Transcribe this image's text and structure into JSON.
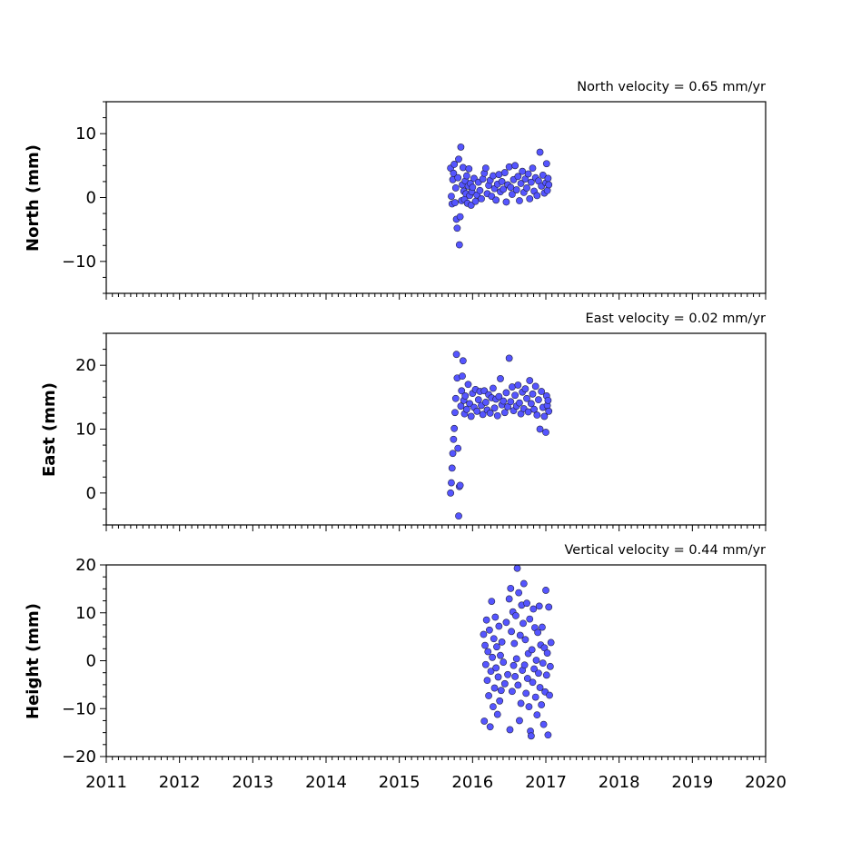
{
  "colors": {
    "marker_fill": "#5555ff",
    "marker_edge": "#222244",
    "axes": "#000000"
  },
  "chart_data": [
    {
      "type": "scatter",
      "title": "North velocity = 0.65 mm/yr",
      "xlabel": "",
      "ylabel": "North (mm)",
      "xlim": [
        2011,
        2020
      ],
      "ylim": [
        -15,
        15
      ],
      "yticks": [
        -10,
        0,
        10
      ],
      "ytick_labels": [
        "−10",
        "0",
        "10"
      ],
      "minor_y_step": 2.5,
      "grid": false,
      "show_xtick_labels": false,
      "series": [
        {
          "points": [
            [
              2015.7,
              4.6
            ],
            [
              2015.71,
              0.2
            ],
            [
              2015.72,
              -1.0
            ],
            [
              2015.73,
              2.8
            ],
            [
              2015.74,
              3.8
            ],
            [
              2015.75,
              5.2
            ],
            [
              2015.76,
              -0.8
            ],
            [
              2015.77,
              1.5
            ],
            [
              2015.78,
              -3.4
            ],
            [
              2015.79,
              -4.8
            ],
            [
              2015.8,
              3.1
            ],
            [
              2015.81,
              6.0
            ],
            [
              2015.82,
              -7.4
            ],
            [
              2015.83,
              -3.0
            ],
            [
              2015.84,
              7.9
            ],
            [
              2015.85,
              -0.5
            ],
            [
              2015.86,
              2.0
            ],
            [
              2015.87,
              4.7
            ],
            [
              2015.88,
              1.0
            ],
            [
              2015.89,
              -0.3
            ],
            [
              2015.9,
              2.6
            ],
            [
              2015.91,
              0.6
            ],
            [
              2015.92,
              3.4
            ],
            [
              2015.93,
              -0.9
            ],
            [
              2015.94,
              1.8
            ],
            [
              2015.95,
              4.5
            ],
            [
              2015.96,
              0.3
            ],
            [
              2015.97,
              2.2
            ],
            [
              2015.98,
              -1.2
            ],
            [
              2015.99,
              0.9
            ],
            [
              2016.0,
              1.6
            ],
            [
              2016.02,
              3.0
            ],
            [
              2016.04,
              -0.6
            ],
            [
              2016.06,
              0.4
            ],
            [
              2016.08,
              2.4
            ],
            [
              2016.1,
              1.1
            ],
            [
              2016.12,
              -0.2
            ],
            [
              2016.14,
              2.9
            ],
            [
              2016.16,
              3.8
            ],
            [
              2016.18,
              4.6
            ],
            [
              2016.2,
              0.6
            ],
            [
              2016.22,
              1.9
            ],
            [
              2016.24,
              2.7
            ],
            [
              2016.26,
              0.2
            ],
            [
              2016.28,
              3.4
            ],
            [
              2016.3,
              1.4
            ],
            [
              2016.32,
              -0.4
            ],
            [
              2016.34,
              2.1
            ],
            [
              2016.36,
              3.6
            ],
            [
              2016.38,
              0.9
            ],
            [
              2016.4,
              2.5
            ],
            [
              2016.42,
              1.3
            ],
            [
              2016.44,
              3.9
            ],
            [
              2016.46,
              -0.7
            ],
            [
              2016.48,
              2.0
            ],
            [
              2016.5,
              4.8
            ],
            [
              2016.52,
              1.6
            ],
            [
              2016.54,
              0.5
            ],
            [
              2016.56,
              2.8
            ],
            [
              2016.58,
              5.0
            ],
            [
              2016.6,
              1.2
            ],
            [
              2016.62,
              3.3
            ],
            [
              2016.64,
              -0.5
            ],
            [
              2016.66,
              2.2
            ],
            [
              2016.68,
              4.1
            ],
            [
              2016.7,
              0.8
            ],
            [
              2016.72,
              2.9
            ],
            [
              2016.74,
              1.5
            ],
            [
              2016.76,
              3.7
            ],
            [
              2016.78,
              -0.2
            ],
            [
              2016.8,
              2.4
            ],
            [
              2016.82,
              4.6
            ],
            [
              2016.84,
              1.0
            ],
            [
              2016.86,
              3.1
            ],
            [
              2016.88,
              0.3
            ],
            [
              2016.9,
              2.6
            ],
            [
              2016.92,
              7.1
            ],
            [
              2016.94,
              1.8
            ],
            [
              2016.96,
              3.5
            ],
            [
              2016.98,
              0.7
            ],
            [
              2017.0,
              2.3
            ],
            [
              2017.01,
              5.3
            ],
            [
              2017.02,
              1.1
            ],
            [
              2017.03,
              3.0
            ],
            [
              2017.04,
              2.0
            ]
          ]
        }
      ]
    },
    {
      "type": "scatter",
      "title": "East velocity = 0.02 mm/yr",
      "xlabel": "",
      "ylabel": "East (mm)",
      "xlim": [
        2011,
        2020
      ],
      "ylim": [
        -5,
        25
      ],
      "yticks": [
        0,
        10,
        20
      ],
      "ytick_labels": [
        "0",
        "10",
        "20"
      ],
      "minor_y_step": 2.5,
      "grid": false,
      "show_xtick_labels": false,
      "series": [
        {
          "points": [
            [
              2015.7,
              0.0
            ],
            [
              2015.71,
              1.6
            ],
            [
              2015.72,
              3.9
            ],
            [
              2015.73,
              6.2
            ],
            [
              2015.74,
              8.4
            ],
            [
              2015.75,
              10.1
            ],
            [
              2015.76,
              12.6
            ],
            [
              2015.77,
              14.8
            ],
            [
              2015.78,
              21.7
            ],
            [
              2015.79,
              18.0
            ],
            [
              2015.8,
              7.0
            ],
            [
              2015.81,
              -3.6
            ],
            [
              2015.82,
              1.0
            ],
            [
              2015.83,
              1.2
            ],
            [
              2015.84,
              13.6
            ],
            [
              2015.85,
              16.0
            ],
            [
              2015.86,
              18.3
            ],
            [
              2015.87,
              20.7
            ],
            [
              2015.88,
              14.5
            ],
            [
              2015.89,
              12.4
            ],
            [
              2015.9,
              15.2
            ],
            [
              2015.92,
              13.1
            ],
            [
              2015.94,
              17.0
            ],
            [
              2015.96,
              14.0
            ],
            [
              2015.98,
              12.0
            ],
            [
              2016.0,
              15.6
            ],
            [
              2016.02,
              13.4
            ],
            [
              2016.04,
              16.2
            ],
            [
              2016.06,
              12.8
            ],
            [
              2016.08,
              14.6
            ],
            [
              2016.1,
              15.9
            ],
            [
              2016.12,
              13.7
            ],
            [
              2016.14,
              12.3
            ],
            [
              2016.16,
              16.0
            ],
            [
              2016.18,
              14.2
            ],
            [
              2016.2,
              13.0
            ],
            [
              2016.22,
              15.4
            ],
            [
              2016.24,
              12.5
            ],
            [
              2016.26,
              14.9
            ],
            [
              2016.28,
              16.4
            ],
            [
              2016.3,
              13.3
            ],
            [
              2016.32,
              14.7
            ],
            [
              2016.34,
              12.1
            ],
            [
              2016.36,
              15.1
            ],
            [
              2016.38,
              17.9
            ],
            [
              2016.4,
              13.8
            ],
            [
              2016.42,
              14.4
            ],
            [
              2016.44,
              12.6
            ],
            [
              2016.46,
              15.7
            ],
            [
              2016.48,
              13.5
            ],
            [
              2016.5,
              21.1
            ],
            [
              2016.52,
              14.3
            ],
            [
              2016.54,
              16.6
            ],
            [
              2016.56,
              12.9
            ],
            [
              2016.58,
              15.3
            ],
            [
              2016.6,
              13.6
            ],
            [
              2016.62,
              16.9
            ],
            [
              2016.64,
              14.1
            ],
            [
              2016.66,
              12.4
            ],
            [
              2016.68,
              15.8
            ],
            [
              2016.7,
              13.2
            ],
            [
              2016.72,
              16.3
            ],
            [
              2016.74,
              14.8
            ],
            [
              2016.76,
              12.7
            ],
            [
              2016.78,
              17.6
            ],
            [
              2016.8,
              14.0
            ],
            [
              2016.82,
              15.5
            ],
            [
              2016.84,
              13.1
            ],
            [
              2016.86,
              16.7
            ],
            [
              2016.88,
              12.2
            ],
            [
              2016.9,
              14.6
            ],
            [
              2016.92,
              10.0
            ],
            [
              2016.94,
              15.9
            ],
            [
              2016.96,
              13.4
            ],
            [
              2016.98,
              12.0
            ],
            [
              2017.0,
              9.5
            ],
            [
              2017.01,
              15.2
            ],
            [
              2017.02,
              13.7
            ],
            [
              2017.03,
              14.5
            ],
            [
              2017.04,
              12.8
            ]
          ]
        }
      ]
    },
    {
      "type": "scatter",
      "title": "Vertical velocity = 0.44 mm/yr",
      "xlabel": "",
      "ylabel": "Height (mm)",
      "xlim": [
        2011,
        2020
      ],
      "ylim": [
        -20,
        20
      ],
      "yticks": [
        -20,
        -10,
        0,
        10,
        20
      ],
      "ytick_labels": [
        "−20",
        "−10",
        "0",
        "10",
        "20"
      ],
      "xticks": [
        2011,
        2012,
        2013,
        2014,
        2015,
        2016,
        2017,
        2018,
        2019,
        2020
      ],
      "xtick_labels": [
        "2011",
        "2012",
        "2013",
        "2014",
        "2015",
        "2016",
        "2017",
        "2018",
        "2019",
        "2020"
      ],
      "minor_y_step": 2.5,
      "grid": false,
      "show_xtick_labels": true,
      "series": [
        {
          "points": [
            [
              2016.15,
              5.5
            ],
            [
              2016.16,
              -12.6
            ],
            [
              2016.17,
              3.2
            ],
            [
              2016.18,
              -0.8
            ],
            [
              2016.19,
              8.5
            ],
            [
              2016.2,
              -4.1
            ],
            [
              2016.21,
              1.9
            ],
            [
              2016.22,
              -7.3
            ],
            [
              2016.23,
              6.4
            ],
            [
              2016.24,
              -13.8
            ],
            [
              2016.25,
              -2.2
            ],
            [
              2016.26,
              12.4
            ],
            [
              2016.27,
              0.7
            ],
            [
              2016.28,
              -9.6
            ],
            [
              2016.29,
              4.6
            ],
            [
              2016.3,
              -5.7
            ],
            [
              2016.31,
              9.1
            ],
            [
              2016.32,
              -1.5
            ],
            [
              2016.33,
              2.9
            ],
            [
              2016.34,
              -11.2
            ],
            [
              2016.35,
              -3.4
            ],
            [
              2016.36,
              7.2
            ],
            [
              2016.37,
              -8.4
            ],
            [
              2016.38,
              1.1
            ],
            [
              2016.39,
              -6.2
            ],
            [
              2016.4,
              3.9
            ],
            [
              2016.42,
              -0.3
            ],
            [
              2016.44,
              -4.8
            ],
            [
              2016.46,
              8.0
            ],
            [
              2016.48,
              -2.9
            ],
            [
              2016.5,
              12.9
            ],
            [
              2016.51,
              -14.4
            ],
            [
              2016.52,
              15.1
            ],
            [
              2016.53,
              6.1
            ],
            [
              2016.54,
              -6.4
            ],
            [
              2016.55,
              10.2
            ],
            [
              2016.56,
              -1.0
            ],
            [
              2016.57,
              3.6
            ],
            [
              2016.58,
              -3.3
            ],
            [
              2016.59,
              9.4
            ],
            [
              2016.6,
              0.4
            ],
            [
              2016.61,
              19.3
            ],
            [
              2016.62,
              -5.1
            ],
            [
              2016.63,
              14.2
            ],
            [
              2016.64,
              -12.5
            ],
            [
              2016.65,
              5.3
            ],
            [
              2016.66,
              -8.9
            ],
            [
              2016.67,
              11.6
            ],
            [
              2016.68,
              -2.0
            ],
            [
              2016.69,
              7.8
            ],
            [
              2016.7,
              16.1
            ],
            [
              2016.71,
              -0.9
            ],
            [
              2016.72,
              4.4
            ],
            [
              2016.73,
              -6.8
            ],
            [
              2016.74,
              12.0
            ],
            [
              2016.75,
              -3.7
            ],
            [
              2016.76,
              1.5
            ],
            [
              2016.77,
              -9.6
            ],
            [
              2016.78,
              8.7
            ],
            [
              2016.79,
              -14.7
            ],
            [
              2016.8,
              -15.7
            ],
            [
              2016.81,
              2.3
            ],
            [
              2016.82,
              -4.5
            ],
            [
              2016.83,
              10.8
            ],
            [
              2016.84,
              -1.7
            ],
            [
              2016.85,
              6.9
            ],
            [
              2016.86,
              -7.6
            ],
            [
              2016.87,
              0.1
            ],
            [
              2016.88,
              -11.3
            ],
            [
              2016.89,
              5.9
            ],
            [
              2016.9,
              -2.6
            ],
            [
              2016.91,
              11.4
            ],
            [
              2016.92,
              -5.6
            ],
            [
              2016.93,
              3.3
            ],
            [
              2016.94,
              -9.2
            ],
            [
              2016.95,
              7.0
            ],
            [
              2016.96,
              -0.5
            ],
            [
              2016.97,
              -13.3
            ],
            [
              2016.98,
              2.7
            ],
            [
              2016.99,
              -6.5
            ],
            [
              2017.0,
              14.7
            ],
            [
              2017.01,
              -3.0
            ],
            [
              2017.02,
              1.6
            ],
            [
              2017.03,
              -15.5
            ],
            [
              2017.04,
              11.2
            ],
            [
              2017.05,
              -7.2
            ],
            [
              2017.06,
              -1.2
            ],
            [
              2017.07,
              3.8
            ]
          ]
        }
      ]
    }
  ]
}
